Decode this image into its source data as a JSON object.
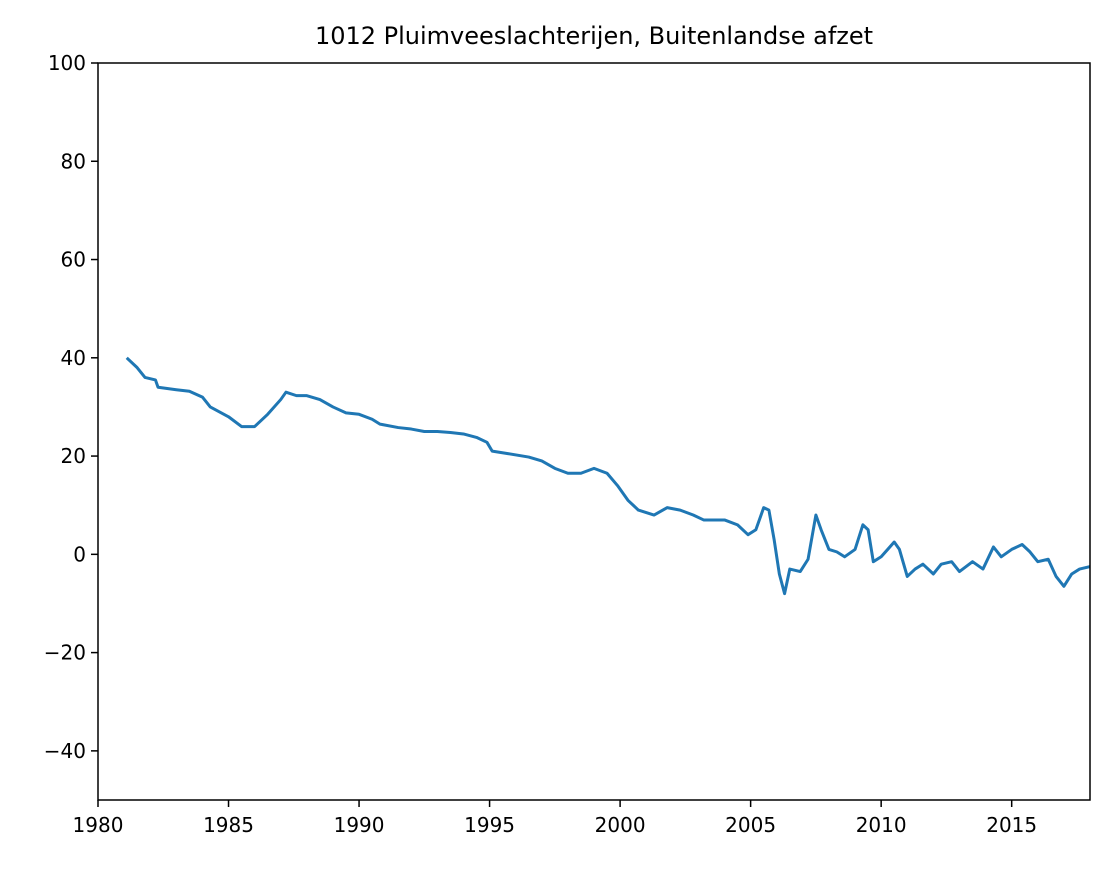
{
  "chart_data": {
    "type": "line",
    "title": "1012 Pluimveeslachterijen, Buitenlandse afzet",
    "xlim": [
      1980,
      2018
    ],
    "xticks": [
      1980,
      1985,
      1990,
      1995,
      2000,
      2005,
      2010,
      2015
    ],
    "ylim": [
      -50,
      100
    ],
    "yticks": [
      {
        "value": -40,
        "label": "−40"
      },
      {
        "value": -20,
        "label": "−20"
      },
      0,
      20,
      40,
      60,
      80,
      100
    ],
    "series": [
      {
        "color": "#1f77b4",
        "x": [
          1981.1,
          1981.5,
          1981.8,
          1982.2,
          1982.3,
          1983.0,
          1983.5,
          1984.0,
          1984.3,
          1985.0,
          1985.5,
          1986.0,
          1986.5,
          1987.0,
          1987.2,
          1987.6,
          1988.0,
          1988.5,
          1989.0,
          1989.5,
          1990.0,
          1990.5,
          1990.8,
          1991.5,
          1992.0,
          1992.5,
          1993.0,
          1993.5,
          1994.0,
          1994.5,
          1994.9,
          1995.1,
          1995.7,
          1996.5,
          1997.0,
          1997.5,
          1998.0,
          1998.5,
          1999.0,
          1999.5,
          1999.9,
          2000.3,
          2000.7,
          2001.3,
          2001.8,
          2002.3,
          2002.8,
          2003.2,
          2003.7,
          2004.0,
          2004.5,
          2004.9,
          2005.2,
          2005.5,
          2005.7,
          2005.9,
          2006.1,
          2006.3,
          2006.5,
          2006.9,
          2007.2,
          2007.5,
          2007.7,
          2008.0,
          2008.3,
          2008.6,
          2009.0,
          2009.3,
          2009.5,
          2009.7,
          2010.0,
          2010.5,
          2010.7,
          2011.0,
          2011.3,
          2011.6,
          2012.0,
          2012.3,
          2012.7,
          2013.0,
          2013.5,
          2013.9,
          2014.3,
          2014.6,
          2015.0,
          2015.4,
          2015.7,
          2016.0,
          2016.4,
          2016.7,
          2017.0,
          2017.3,
          2017.6,
          2018.0
        ],
        "values": [
          40,
          38,
          36,
          35.5,
          34,
          33.5,
          33.2,
          32,
          30,
          28,
          26,
          26,
          28.5,
          31.5,
          33,
          32.3,
          32.3,
          31.5,
          30,
          28.8,
          28.5,
          27.5,
          26.5,
          25.8,
          25.5,
          25,
          25,
          24.8,
          24.5,
          23.8,
          22.8,
          21,
          20.5,
          19.8,
          19,
          17.5,
          16.5,
          16.5,
          17.5,
          16.5,
          14,
          11,
          9,
          8,
          9.5,
          9,
          8,
          7,
          7,
          7,
          6,
          4,
          5,
          9.5,
          9,
          3,
          -4,
          -8,
          -3,
          -3.5,
          -1,
          8,
          5,
          1,
          0.5,
          -0.5,
          1,
          6,
          5,
          -1.5,
          -0.5,
          2.5,
          1,
          -4.5,
          -3,
          -2,
          -4,
          -2,
          -1.5,
          -3.5,
          -1.5,
          -3,
          1.5,
          -0.5,
          1,
          2,
          0.5,
          -1.5,
          -1,
          -4.5,
          -6.5,
          -4,
          -3,
          -2.5
        ]
      }
    ]
  }
}
